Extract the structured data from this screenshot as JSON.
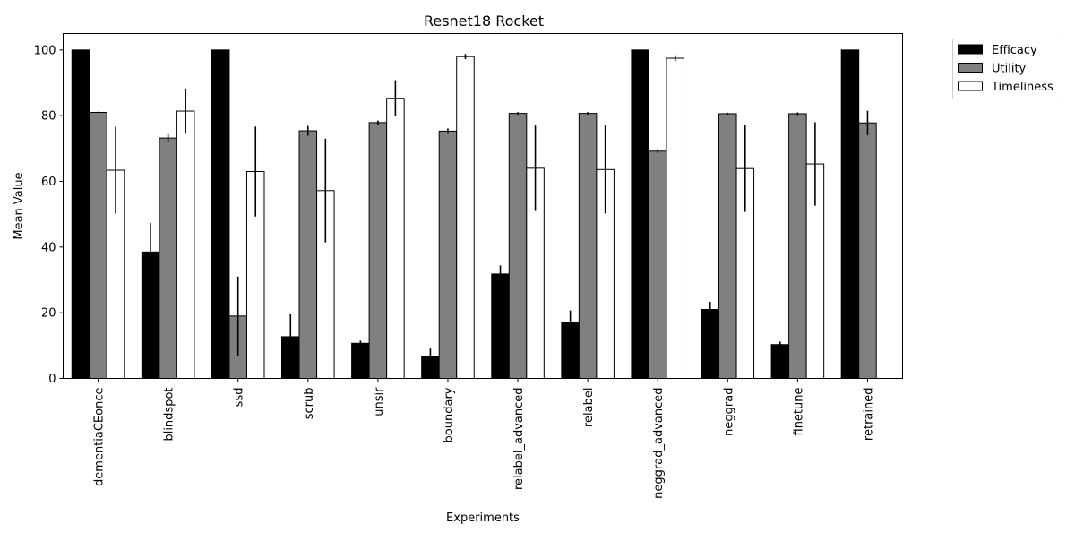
{
  "chart_data": {
    "type": "bar",
    "title": "Resnet18 Rocket",
    "xlabel": "Experiments",
    "ylabel": "Mean Value",
    "ylim": [
      0,
      105
    ],
    "yticks": [
      0,
      20,
      40,
      60,
      80,
      100
    ],
    "grid": false,
    "legend_position": "outside-top-right",
    "categories": [
      "dementiaCEonce",
      "blindspot",
      "ssd",
      "scrub",
      "unsir",
      "boundary",
      "relabel_advanced",
      "relabel",
      "neggrad_advanced",
      "neggrad",
      "finetune",
      "retrained"
    ],
    "series": [
      {
        "name": "Efficacy",
        "color": "#000000",
        "values": [
          100,
          38.5,
          100,
          12.7,
          10.7,
          6.6,
          31.8,
          17.1,
          100,
          21.0,
          10.3,
          100
        ],
        "errors": [
          0,
          8.8,
          0,
          6.8,
          0.8,
          2.5,
          2.6,
          3.6,
          0,
          2.3,
          0.9,
          0
        ]
      },
      {
        "name": "Utility",
        "color": "#808080",
        "values": [
          81.0,
          73.2,
          19.0,
          75.4,
          77.9,
          75.3,
          80.7,
          80.7,
          69.2,
          80.6,
          80.6,
          77.8
        ],
        "errors": [
          0.2,
          1.2,
          12.0,
          1.5,
          0.6,
          0.8,
          0.4,
          0.4,
          0.6,
          0.3,
          0.4,
          3.7
        ]
      },
      {
        "name": "Timeliness",
        "color": "#ffffff",
        "values": [
          63.4,
          81.4,
          63.0,
          57.2,
          85.3,
          98.0,
          64.0,
          63.6,
          97.5,
          63.9,
          65.3,
          0
        ],
        "errors": [
          13.2,
          6.9,
          13.7,
          15.8,
          5.5,
          0.8,
          13.0,
          13.4,
          0.9,
          13.2,
          12.7,
          0
        ]
      }
    ]
  }
}
